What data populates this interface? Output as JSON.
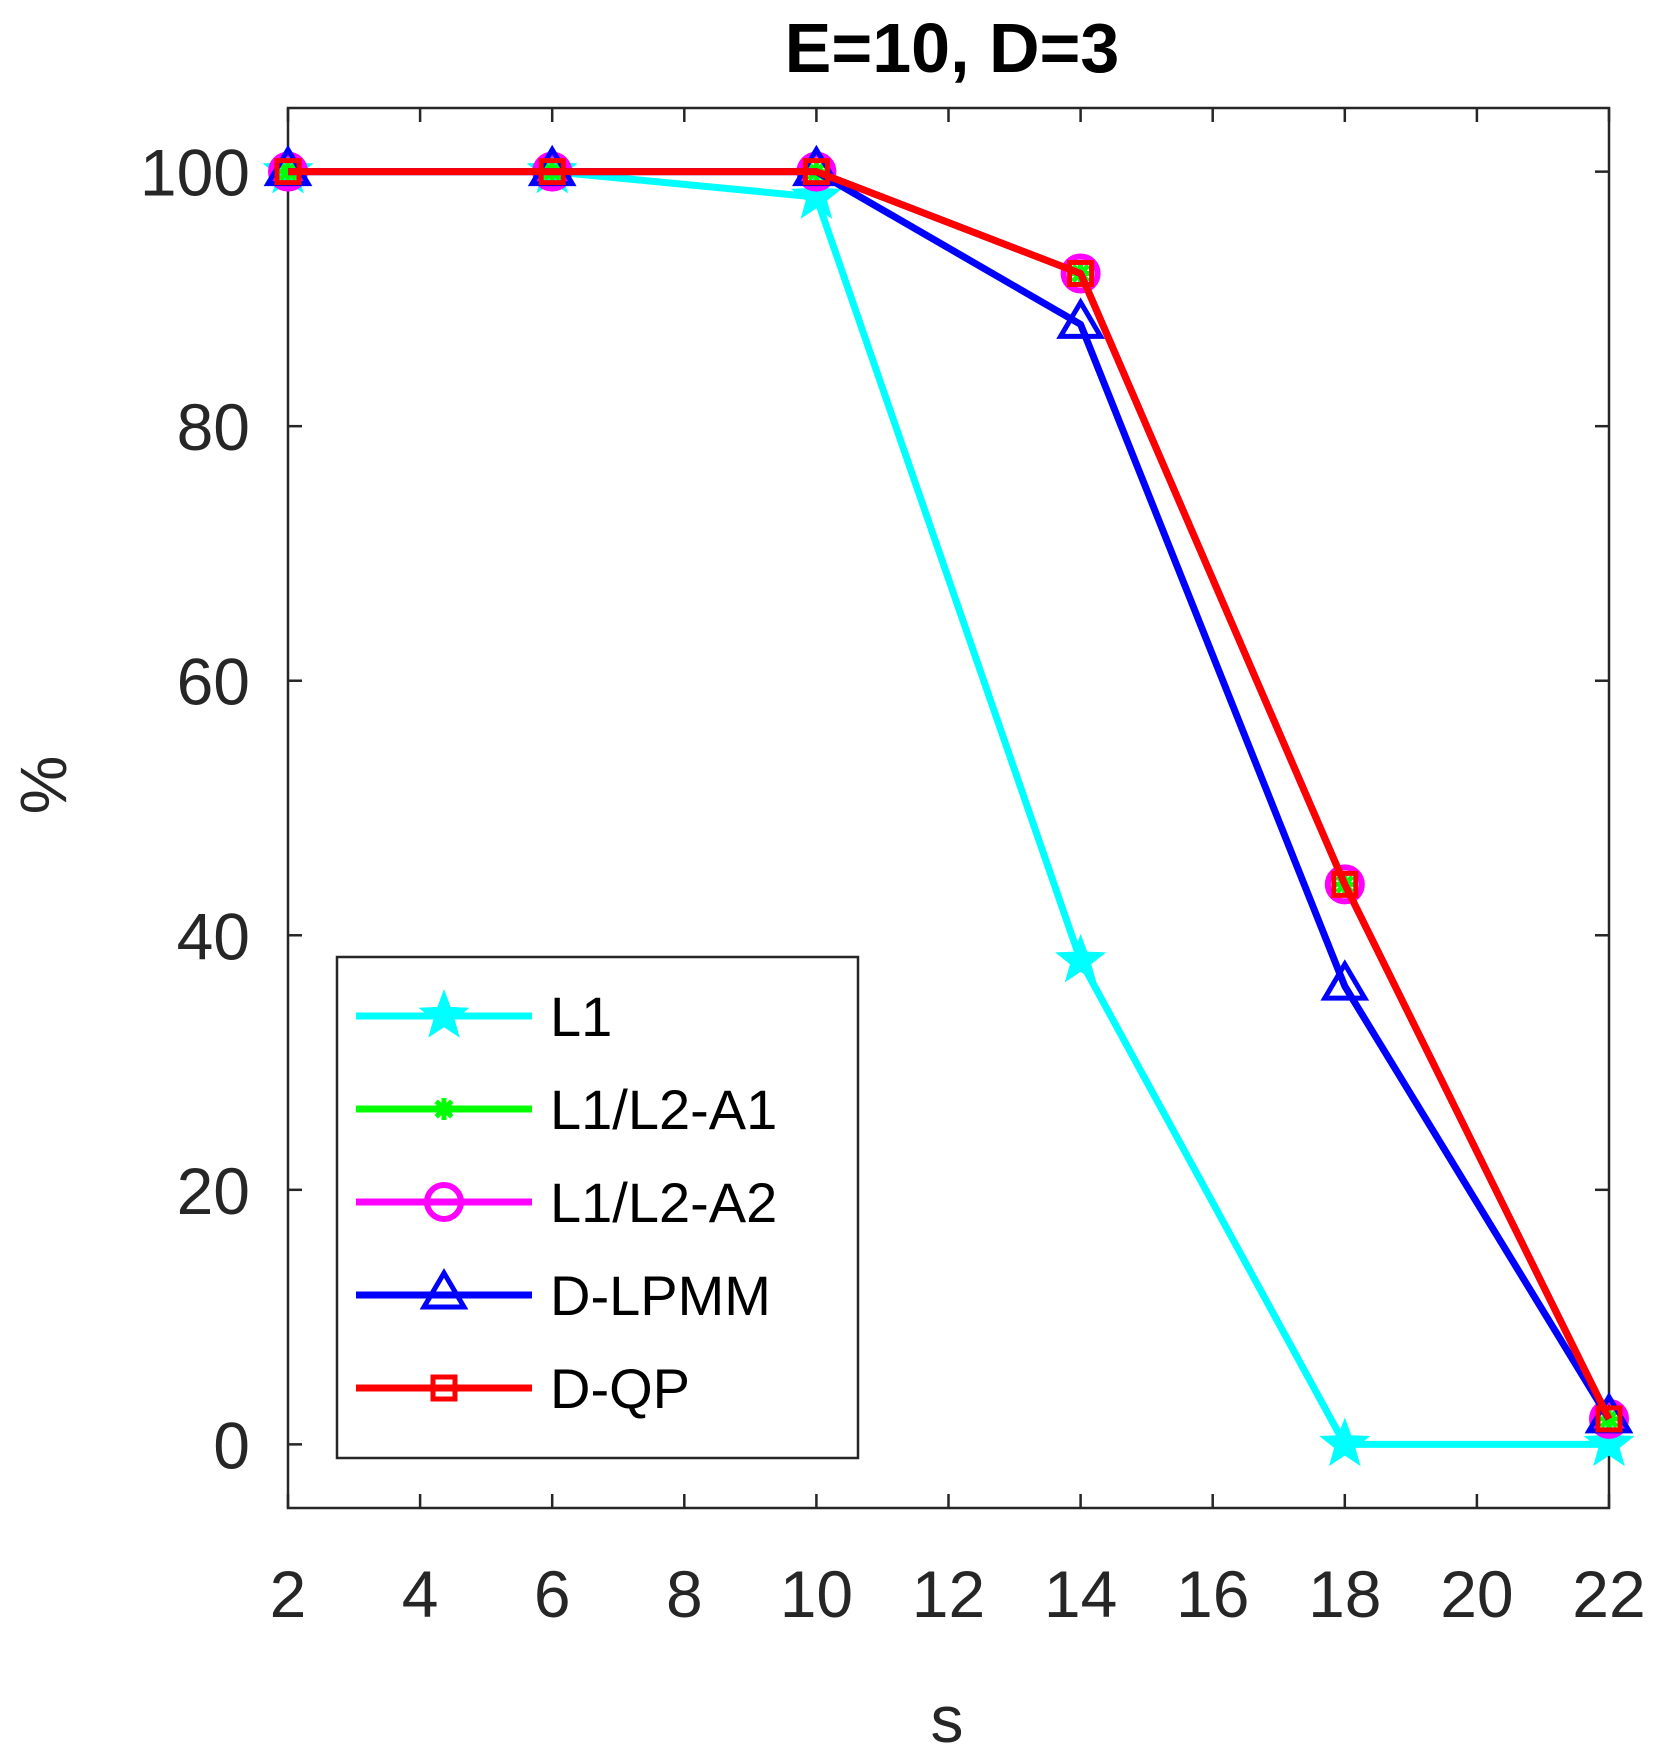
{
  "chart_data": {
    "type": "line",
    "title": "E=10, D=3",
    "xlabel": "s",
    "ylabel": "%",
    "xlim": [
      2,
      22
    ],
    "ylim": [
      -5,
      105
    ],
    "xticks": [
      2,
      4,
      6,
      8,
      10,
      12,
      14,
      16,
      18,
      20,
      22
    ],
    "yticks": [
      0,
      20,
      40,
      60,
      80,
      100
    ],
    "x": [
      2,
      6,
      10,
      14,
      18,
      22
    ],
    "grid": false,
    "legend_position": "bottom-left",
    "series": [
      {
        "name": "L1",
        "color": "#00ffff",
        "marker": "star",
        "values": [
          100,
          100,
          98,
          38,
          0,
          0
        ]
      },
      {
        "name": "L1/L2-A1",
        "color": "#00ff00",
        "marker": "asterisk",
        "values": [
          100,
          100,
          100,
          92,
          44,
          2
        ]
      },
      {
        "name": "L1/L2-A2",
        "color": "#ff00ff",
        "marker": "circle",
        "values": [
          100,
          100,
          100,
          92,
          44,
          2
        ]
      },
      {
        "name": "D-LPMM",
        "color": "#0000ff",
        "marker": "triangle",
        "values": [
          100,
          100,
          100,
          88,
          36,
          2
        ]
      },
      {
        "name": "D-QP",
        "color": "#ff0000",
        "marker": "square",
        "values": [
          100,
          100,
          100,
          92,
          44,
          2
        ]
      }
    ]
  }
}
